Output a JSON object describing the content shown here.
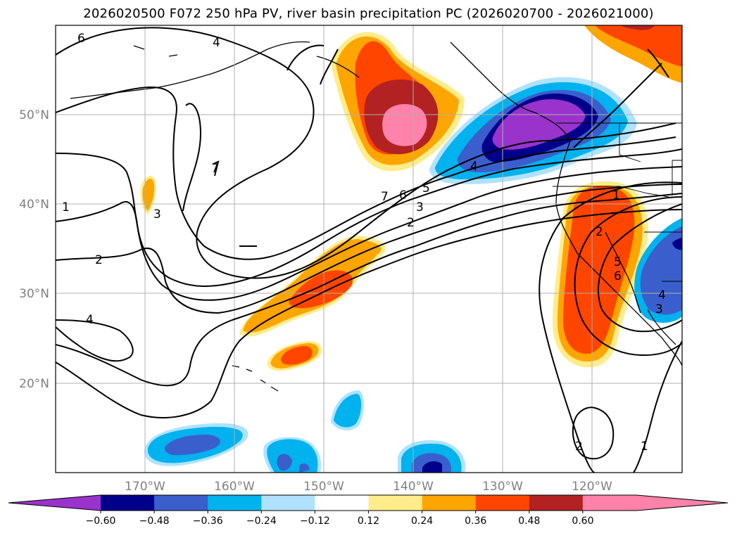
{
  "title": "2026020500 F072 250 hPa PV, river basin precipitation PC (2026020700 - 2026021000)",
  "map": {
    "lat_labels": [
      "50°N",
      "40°N",
      "30°N",
      "20°N"
    ],
    "lon_labels": [
      "170°W",
      "160°W",
      "150°W",
      "140°W",
      "130°W",
      "120°W"
    ],
    "contour_labels": [
      "6",
      "4",
      "7",
      "1",
      "3",
      "2",
      "4",
      "7",
      "6",
      "5",
      "3",
      "2",
      "4",
      "1",
      "2",
      "5",
      "6",
      "3",
      "4",
      "2",
      "1"
    ]
  },
  "colorbar": {
    "tick_labels": [
      "−0.60",
      "−0.48",
      "−0.36",
      "−0.24",
      "−0.12",
      "0.12",
      "0.24",
      "0.36",
      "0.48",
      "0.60"
    ],
    "colors": [
      "#9933cc",
      "#00008b",
      "#3a5fcd",
      "#00b2ee",
      "#b0e2ff",
      "#ffffff",
      "#ffec8b",
      "#ffa500",
      "#ff4500",
      "#b22222",
      "#ff82ab",
      "#ff82ab"
    ]
  }
}
